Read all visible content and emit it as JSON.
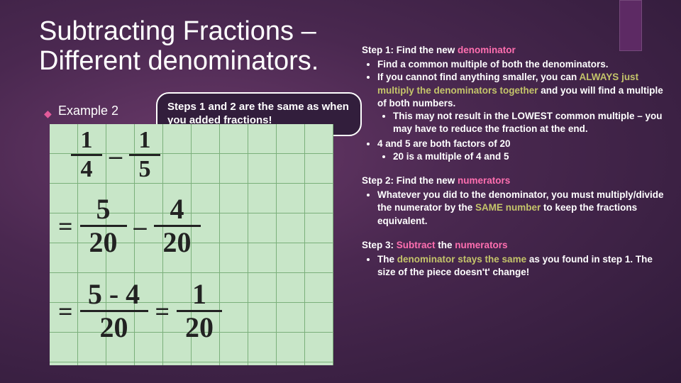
{
  "title": "Subtracting Fractions – Different denominators.",
  "example_label": "Example 2",
  "callout": "Steps 1 and 2 are the same as when you added fractions!",
  "handwork": {
    "r1": {
      "a_num": "1",
      "a_den": "4",
      "op": "–",
      "b_num": "1",
      "b_den": "5"
    },
    "r2": {
      "eq": "=",
      "a_num": "5",
      "a_den": "20",
      "op": "–",
      "b_num": "4",
      "b_den": "20"
    },
    "r3": {
      "eq": "=",
      "a_num": "5 - 4",
      "a_den": "20",
      "mid_eq": "=",
      "b_num": "1",
      "b_den": "20"
    }
  },
  "colors": {
    "pink": "#ff6fb0",
    "olive": "#c4c46a",
    "paper": "#c8e6c8",
    "paper_grid": "#7bb07b",
    "bg_center": "#6a3a6a",
    "bg_edge": "#2e1a38",
    "accent": "#5d2a64"
  },
  "step1": {
    "heading_a": "Step 1: Find the new ",
    "heading_b": "denominator",
    "b1": "Find a common multiple of both the denominators.",
    "b2a": "If you cannot find anything smaller, you can ",
    "b2b": "ALWAYS just multiply the denominators together",
    "b2c": " and you will find a multiple of both numbers.",
    "b2s1": "This may not result in the LOWEST common multiple – you may have to reduce the fraction at the end.",
    "b3": "4 and 5 are both factors of 20",
    "b3s1": "20 is a multiple of 4 and 5"
  },
  "step2": {
    "heading_a": "Step 2: Find the new ",
    "heading_b": "numerators",
    "b1a": "Whatever you did to the denominator, you must multiply/divide the numerator by the ",
    "b1b": "SAME number",
    "b1c": " to keep the fractions equivalent."
  },
  "step3": {
    "heading_a": "Step 3: ",
    "heading_b": "Subtract",
    "heading_c": " the ",
    "heading_d": "numerators",
    "b1a": "The ",
    "b1b": "denominator stays the same",
    "b1c": " as you found in step 1. The size of the piece doesn't' change!"
  }
}
